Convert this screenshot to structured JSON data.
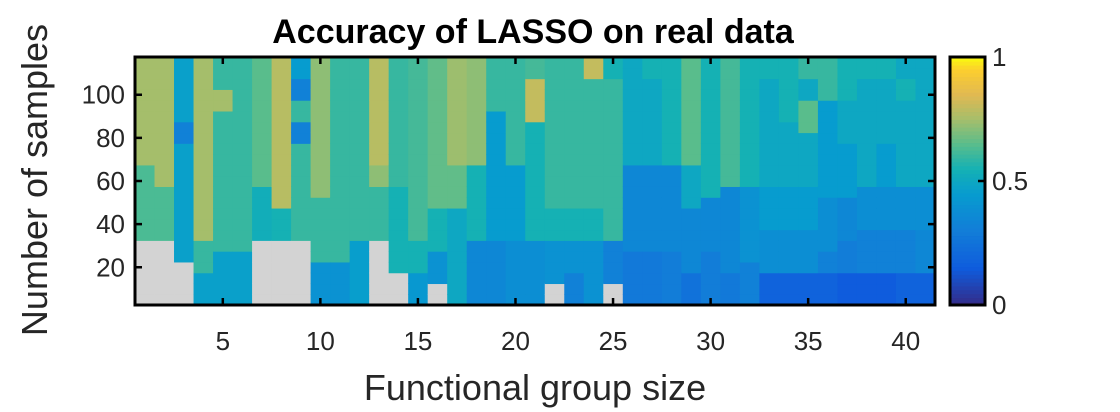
{
  "chart_data": {
    "type": "heatmap",
    "title": "Accuracy of LASSO on real data",
    "xlabel": "Functional group size",
    "ylabel": "Number of samples",
    "x": [
      1,
      2,
      3,
      4,
      5,
      6,
      7,
      8,
      9,
      10,
      11,
      12,
      13,
      14,
      15,
      16,
      17,
      18,
      19,
      20,
      21,
      22,
      23,
      24,
      25,
      26,
      27,
      28,
      29,
      30,
      31,
      32,
      33,
      34,
      35,
      36,
      37,
      38,
      39,
      40,
      41
    ],
    "y": [
      5,
      10,
      15,
      20,
      25,
      30,
      35,
      40,
      45,
      50,
      55,
      60,
      65,
      70,
      75,
      80,
      85,
      90,
      95,
      100,
      105,
      110,
      115
    ],
    "xlim": [
      0.5,
      41.5
    ],
    "ylim": [
      2.5,
      117.5
    ],
    "x_ticks": [
      5,
      10,
      15,
      20,
      25,
      30,
      35,
      40
    ],
    "y_ticks": [
      20,
      40,
      60,
      80,
      100
    ],
    "colorbar": {
      "min": 0,
      "max": 1,
      "ticks": [
        0,
        0.5,
        1
      ],
      "tick_labels": [
        "0",
        "0.5",
        "1"
      ],
      "colormap": "parula"
    },
    "missing_color": "#d3d3d3",
    "z_columns_bottom_to_top": [
      [
        null,
        null,
        null,
        null,
        null,
        null,
        0.63,
        0.63,
        0.63,
        0.63,
        0.63,
        0.63,
        0.63,
        0.75,
        0.75,
        0.75,
        0.75,
        0.75,
        0.75,
        0.75,
        0.75,
        0.75,
        0.75
      ],
      [
        null,
        null,
        null,
        null,
        null,
        null,
        0.63,
        0.63,
        0.63,
        0.63,
        0.63,
        0.75,
        0.75,
        0.75,
        0.75,
        0.75,
        0.75,
        0.75,
        0.75,
        0.75,
        0.75,
        0.75,
        0.75
      ],
      [
        null,
        null,
        null,
        null,
        0.47,
        0.47,
        0.47,
        0.47,
        0.47,
        0.47,
        0.47,
        0.47,
        0.47,
        0.47,
        0.47,
        0.32,
        0.32,
        0.47,
        0.47,
        0.47,
        0.47,
        0.47,
        0.47
      ],
      [
        0.47,
        0.47,
        0.47,
        0.6,
        0.6,
        0.6,
        0.75,
        0.75,
        0.75,
        0.75,
        0.75,
        0.75,
        0.75,
        0.75,
        0.75,
        0.75,
        0.75,
        0.75,
        0.75,
        0.75,
        0.75,
        0.75,
        0.75
      ],
      [
        0.47,
        0.47,
        0.47,
        0.47,
        0.47,
        0.6,
        0.6,
        0.6,
        0.6,
        0.6,
        0.6,
        0.6,
        0.6,
        0.6,
        0.6,
        0.6,
        0.6,
        0.6,
        0.75,
        0.75,
        0.6,
        0.6,
        0.6
      ],
      [
        0.47,
        0.47,
        0.47,
        0.47,
        0.47,
        0.6,
        0.6,
        0.6,
        0.6,
        0.6,
        0.6,
        0.6,
        0.6,
        0.6,
        0.6,
        0.6,
        0.6,
        0.6,
        0.6,
        0.6,
        0.6,
        0.6,
        0.6
      ],
      [
        null,
        null,
        null,
        null,
        null,
        null,
        0.53,
        0.53,
        0.53,
        0.53,
        0.53,
        0.65,
        0.65,
        0.65,
        0.65,
        0.65,
        0.65,
        0.65,
        0.65,
        0.65,
        0.65,
        0.65,
        0.65
      ],
      [
        null,
        null,
        null,
        null,
        null,
        null,
        0.55,
        0.55,
        0.55,
        0.78,
        0.78,
        0.78,
        0.78,
        0.78,
        0.78,
        0.78,
        0.78,
        0.78,
        0.78,
        0.78,
        0.78,
        0.78,
        0.78
      ],
      [
        null,
        null,
        null,
        null,
        null,
        null,
        0.6,
        0.6,
        0.6,
        0.6,
        0.6,
        0.6,
        0.6,
        0.6,
        0.6,
        0.32,
        0.32,
        0.6,
        0.6,
        0.32,
        0.32,
        0.45,
        0.45
      ],
      [
        0.4,
        0.4,
        0.4,
        0.4,
        0.6,
        0.6,
        0.6,
        0.6,
        0.6,
        0.6,
        0.72,
        0.72,
        0.72,
        0.72,
        0.72,
        0.72,
        0.72,
        0.72,
        0.72,
        0.72,
        0.72,
        0.72,
        0.72
      ],
      [
        0.4,
        0.4,
        0.4,
        0.4,
        0.6,
        0.6,
        0.6,
        0.6,
        0.6,
        0.6,
        0.6,
        0.6,
        0.6,
        0.6,
        0.6,
        0.6,
        0.6,
        0.6,
        0.6,
        0.6,
        0.6,
        0.6,
        0.6
      ],
      [
        0.46,
        0.46,
        0.46,
        0.46,
        0.46,
        0.46,
        0.6,
        0.6,
        0.6,
        0.6,
        0.6,
        0.6,
        0.6,
        0.6,
        0.6,
        0.6,
        0.6,
        0.6,
        0.6,
        0.6,
        0.6,
        0.6,
        0.6
      ],
      [
        null,
        null,
        null,
        null,
        null,
        null,
        0.6,
        0.6,
        0.6,
        0.6,
        0.6,
        0.72,
        0.72,
        0.78,
        0.78,
        0.78,
        0.78,
        0.78,
        0.78,
        0.78,
        0.78,
        0.78,
        0.78
      ],
      [
        null,
        null,
        null,
        0.55,
        0.55,
        0.55,
        0.55,
        0.55,
        0.55,
        0.55,
        0.55,
        0.6,
        0.6,
        0.6,
        0.6,
        0.6,
        0.6,
        0.6,
        0.6,
        0.6,
        0.6,
        0.6,
        0.6
      ],
      [
        0.43,
        0.43,
        0.43,
        0.55,
        0.55,
        0.55,
        0.62,
        0.62,
        0.62,
        0.62,
        0.62,
        0.62,
        0.62,
        0.62,
        0.62,
        0.62,
        0.62,
        0.62,
        0.62,
        0.62,
        0.62,
        0.62,
        0.62
      ],
      [
        null,
        null,
        0.4,
        0.4,
        0.4,
        0.55,
        0.55,
        0.55,
        0.55,
        0.66,
        0.66,
        0.66,
        0.66,
        0.66,
        0.66,
        0.66,
        0.66,
        0.66,
        0.66,
        0.66,
        0.66,
        0.66,
        0.66
      ],
      [
        0.5,
        0.5,
        0.5,
        0.5,
        0.5,
        0.5,
        0.5,
        0.5,
        0.5,
        0.66,
        0.66,
        0.66,
        0.66,
        0.74,
        0.74,
        0.74,
        0.74,
        0.74,
        0.74,
        0.74,
        0.74,
        0.74,
        0.74
      ],
      [
        0.35,
        0.35,
        0.35,
        0.35,
        0.35,
        0.35,
        0.55,
        0.55,
        0.55,
        0.55,
        0.55,
        0.55,
        0.55,
        0.72,
        0.72,
        0.72,
        0.72,
        0.72,
        0.72,
        0.72,
        0.72,
        0.72,
        0.72
      ],
      [
        0.35,
        0.35,
        0.35,
        0.35,
        0.35,
        0.35,
        0.45,
        0.45,
        0.45,
        0.45,
        0.45,
        0.45,
        0.45,
        0.45,
        0.45,
        0.45,
        0.45,
        0.45,
        0.6,
        0.6,
        0.6,
        0.6,
        0.6
      ],
      [
        0.38,
        0.38,
        0.38,
        0.38,
        0.38,
        0.38,
        0.45,
        0.45,
        0.45,
        0.45,
        0.45,
        0.45,
        0.45,
        0.6,
        0.6,
        0.6,
        0.6,
        0.6,
        0.6,
        0.6,
        0.6,
        0.6,
        0.6
      ],
      [
        0.38,
        0.38,
        0.38,
        0.38,
        0.38,
        0.38,
        0.55,
        0.55,
        0.55,
        0.55,
        0.55,
        0.55,
        0.55,
        0.55,
        0.55,
        0.55,
        0.55,
        0.8,
        0.8,
        0.8,
        0.8,
        0.62,
        0.62
      ],
      [
        null,
        null,
        0.4,
        0.4,
        0.4,
        0.4,
        0.55,
        0.55,
        0.55,
        0.6,
        0.6,
        0.6,
        0.6,
        0.6,
        0.6,
        0.6,
        0.6,
        0.6,
        0.6,
        0.6,
        0.6,
        0.6,
        0.6
      ],
      [
        0.32,
        0.32,
        0.32,
        0.4,
        0.4,
        0.4,
        0.55,
        0.55,
        0.55,
        0.6,
        0.6,
        0.6,
        0.6,
        0.6,
        0.6,
        0.6,
        0.6,
        0.6,
        0.6,
        0.6,
        0.6,
        0.6,
        0.6
      ],
      [
        0.4,
        0.4,
        0.4,
        0.4,
        0.4,
        0.4,
        0.55,
        0.55,
        0.55,
        0.6,
        0.6,
        0.6,
        0.6,
        0.6,
        0.6,
        0.6,
        0.6,
        0.6,
        0.6,
        0.6,
        0.6,
        0.8,
        0.8
      ],
      [
        null,
        null,
        0.32,
        0.32,
        0.32,
        0.32,
        0.6,
        0.6,
        0.6,
        0.6,
        0.6,
        0.6,
        0.6,
        0.6,
        0.6,
        0.6,
        0.6,
        0.6,
        0.6,
        0.6,
        0.6,
        0.55,
        0.55
      ],
      [
        0.28,
        0.28,
        0.28,
        0.28,
        0.28,
        0.35,
        0.35,
        0.35,
        0.35,
        0.35,
        0.35,
        0.35,
        0.35,
        0.5,
        0.5,
        0.5,
        0.5,
        0.5,
        0.5,
        0.5,
        0.5,
        0.5,
        0.5
      ],
      [
        0.28,
        0.28,
        0.28,
        0.28,
        0.28,
        0.35,
        0.35,
        0.35,
        0.35,
        0.35,
        0.35,
        0.35,
        0.35,
        0.5,
        0.5,
        0.5,
        0.5,
        0.5,
        0.5,
        0.5,
        0.5,
        0.55,
        0.55
      ],
      [
        0.3,
        0.3,
        0.3,
        0.3,
        0.3,
        0.35,
        0.35,
        0.35,
        0.35,
        0.35,
        0.35,
        0.35,
        0.35,
        0.55,
        0.55,
        0.55,
        0.55,
        0.55,
        0.55,
        0.55,
        0.55,
        0.55,
        0.55
      ],
      [
        0.25,
        0.25,
        0.25,
        0.35,
        0.35,
        0.35,
        0.35,
        0.35,
        0.35,
        0.5,
        0.5,
        0.5,
        0.5,
        0.65,
        0.65,
        0.65,
        0.65,
        0.65,
        0.65,
        0.65,
        0.65,
        0.65,
        0.65
      ],
      [
        0.3,
        0.3,
        0.3,
        0.3,
        0.3,
        0.35,
        0.35,
        0.35,
        0.35,
        0.35,
        0.55,
        0.55,
        0.55,
        0.55,
        0.55,
        0.55,
        0.55,
        0.55,
        0.55,
        0.55,
        0.55,
        0.55,
        0.55
      ],
      [
        0.28,
        0.28,
        0.28,
        0.35,
        0.35,
        0.35,
        0.35,
        0.35,
        0.35,
        0.35,
        0.35,
        0.62,
        0.62,
        0.62,
        0.62,
        0.62,
        0.62,
        0.62,
        0.62,
        0.62,
        0.62,
        0.62,
        0.62
      ],
      [
        0.32,
        0.32,
        0.32,
        0.32,
        0.4,
        0.4,
        0.4,
        0.4,
        0.4,
        0.4,
        0.4,
        0.55,
        0.55,
        0.55,
        0.55,
        0.55,
        0.55,
        0.55,
        0.55,
        0.55,
        0.55,
        0.55,
        0.55
      ],
      [
        0.18,
        0.18,
        0.18,
        0.38,
        0.38,
        0.38,
        0.38,
        0.45,
        0.45,
        0.45,
        0.45,
        0.5,
        0.5,
        0.5,
        0.5,
        0.5,
        0.5,
        0.5,
        0.5,
        0.5,
        0.5,
        0.55,
        0.55
      ],
      [
        0.18,
        0.18,
        0.18,
        0.38,
        0.38,
        0.38,
        0.38,
        0.45,
        0.45,
        0.45,
        0.45,
        0.5,
        0.5,
        0.5,
        0.5,
        0.5,
        0.5,
        0.55,
        0.55,
        0.55,
        0.55,
        0.55,
        0.55
      ],
      [
        0.18,
        0.18,
        0.18,
        0.38,
        0.38,
        0.38,
        0.38,
        0.45,
        0.45,
        0.45,
        0.45,
        0.5,
        0.5,
        0.5,
        0.5,
        0.5,
        0.65,
        0.65,
        0.65,
        0.5,
        0.5,
        0.6,
        0.6
      ],
      [
        0.18,
        0.18,
        0.18,
        0.32,
        0.32,
        0.38,
        0.38,
        0.38,
        0.38,
        0.38,
        0.45,
        0.45,
        0.45,
        0.45,
        0.45,
        0.45,
        0.45,
        0.45,
        0.45,
        0.6,
        0.6,
        0.6,
        0.6
      ],
      [
        0.15,
        0.15,
        0.15,
        0.3,
        0.3,
        0.3,
        0.35,
        0.35,
        0.35,
        0.35,
        0.45,
        0.45,
        0.45,
        0.45,
        0.45,
        0.5,
        0.5,
        0.5,
        0.5,
        0.55,
        0.55,
        0.55,
        0.55
      ],
      [
        0.15,
        0.15,
        0.15,
        0.32,
        0.32,
        0.32,
        0.32,
        0.38,
        0.38,
        0.38,
        0.38,
        0.5,
        0.5,
        0.5,
        0.5,
        0.5,
        0.5,
        0.5,
        0.5,
        0.5,
        0.5,
        0.55,
        0.55
      ],
      [
        0.15,
        0.15,
        0.15,
        0.32,
        0.32,
        0.32,
        0.32,
        0.38,
        0.38,
        0.38,
        0.38,
        0.45,
        0.45,
        0.45,
        0.45,
        0.5,
        0.5,
        0.5,
        0.5,
        0.5,
        0.5,
        0.55,
        0.55
      ],
      [
        0.18,
        0.18,
        0.18,
        0.32,
        0.32,
        0.32,
        0.32,
        0.38,
        0.38,
        0.38,
        0.38,
        0.5,
        0.5,
        0.5,
        0.5,
        0.5,
        0.5,
        0.5,
        0.5,
        0.55,
        0.55,
        0.5,
        0.5
      ],
      [
        0.18,
        0.18,
        0.18,
        0.35,
        0.35,
        0.35,
        0.35,
        0.38,
        0.38,
        0.38,
        0.38,
        0.5,
        0.5,
        0.5,
        0.5,
        0.5,
        0.5,
        0.5,
        0.5,
        0.5,
        0.5,
        0.5,
        0.5
      ]
    ]
  }
}
